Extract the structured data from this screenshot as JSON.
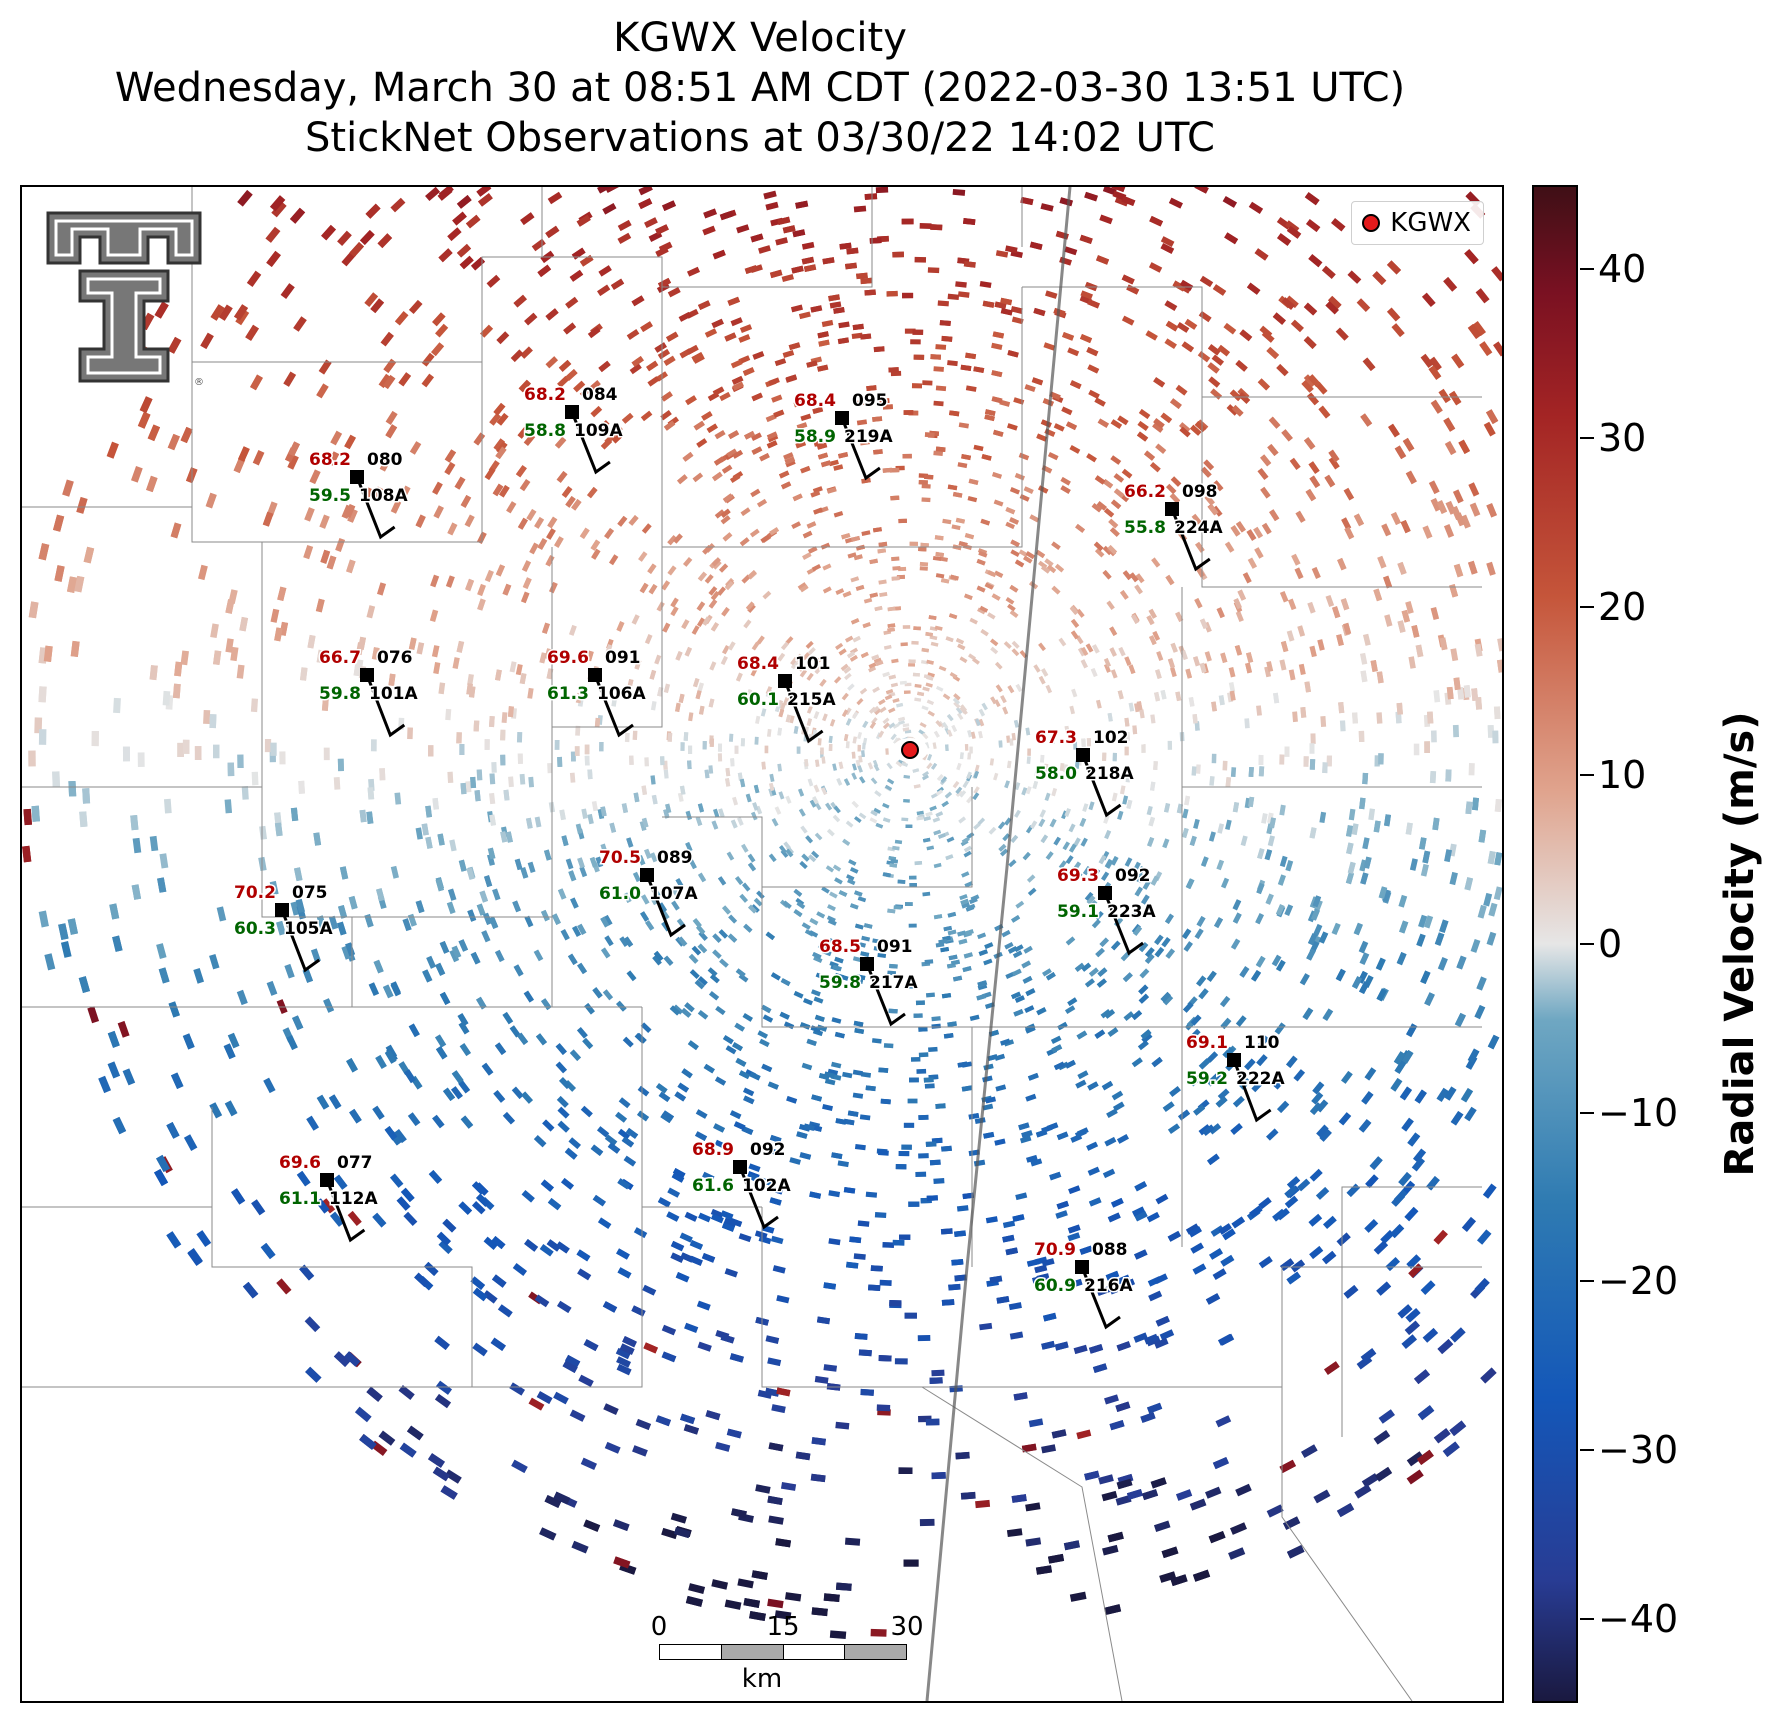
{
  "title": {
    "line1": "KGWX Velocity",
    "line2": "Wednesday, March 30 at 08:51 AM CDT (2022-03-30 13:51 UTC)",
    "line3": "StickNet Observations at 03/30/22 14:02 UTC"
  },
  "legend": {
    "label": "KGWX",
    "marker_color": "#e41a1c"
  },
  "colorbar": {
    "label": "Radial Velocity (m/s)",
    "range": [
      -45,
      45
    ],
    "ticks": [
      "40",
      "30",
      "20",
      "10",
      "0",
      "−10",
      "−20",
      "−30",
      "−40"
    ]
  },
  "scale_bar": {
    "ticks": [
      "0",
      "15",
      "30"
    ],
    "unit": "km"
  },
  "colors": {
    "temperature": "#b00000",
    "dewpoint": "#006400",
    "inbound": "#1457b8",
    "outbound": "#c5553a"
  },
  "stations": [
    {
      "id": "108A",
      "temp": "68.2",
      "dew": "59.5",
      "dir": "080"
    },
    {
      "id": "109A",
      "temp": "68.2",
      "dew": "58.8",
      "dir": "084"
    },
    {
      "id": "219A",
      "temp": "68.4",
      "dew": "58.9",
      "dir": "095"
    },
    {
      "id": "224A",
      "temp": "66.2",
      "dew": "55.8",
      "dir": "098"
    },
    {
      "id": "101A",
      "temp": "66.7",
      "dew": "59.8",
      "dir": "076"
    },
    {
      "id": "106A",
      "temp": "69.6",
      "dew": "61.3",
      "dir": "091"
    },
    {
      "id": "215A",
      "temp": "68.4",
      "dew": "60.1",
      "dir": "101"
    },
    {
      "id": "218A",
      "temp": "67.3",
      "dew": "58.0",
      "dir": "102"
    },
    {
      "id": "107A",
      "temp": "70.5",
      "dew": "61.0",
      "dir": "089"
    },
    {
      "id": "105A",
      "temp": "70.2",
      "dew": "60.3",
      "dir": "075"
    },
    {
      "id": "223A",
      "temp": "69.3",
      "dew": "59.1",
      "dir": "092"
    },
    {
      "id": "217A",
      "temp": "68.5",
      "dew": "59.8",
      "dir": "091"
    },
    {
      "id": "222A",
      "temp": "69.1",
      "dew": "59.2",
      "dir": "110"
    },
    {
      "id": "102A",
      "temp": "68.9",
      "dew": "61.6",
      "dir": "092"
    },
    {
      "id": "112A",
      "temp": "69.6",
      "dew": "61.1",
      "dir": "077"
    },
    {
      "id": "216A",
      "temp": "70.9",
      "dew": "60.9",
      "dir": "088"
    }
  ]
}
